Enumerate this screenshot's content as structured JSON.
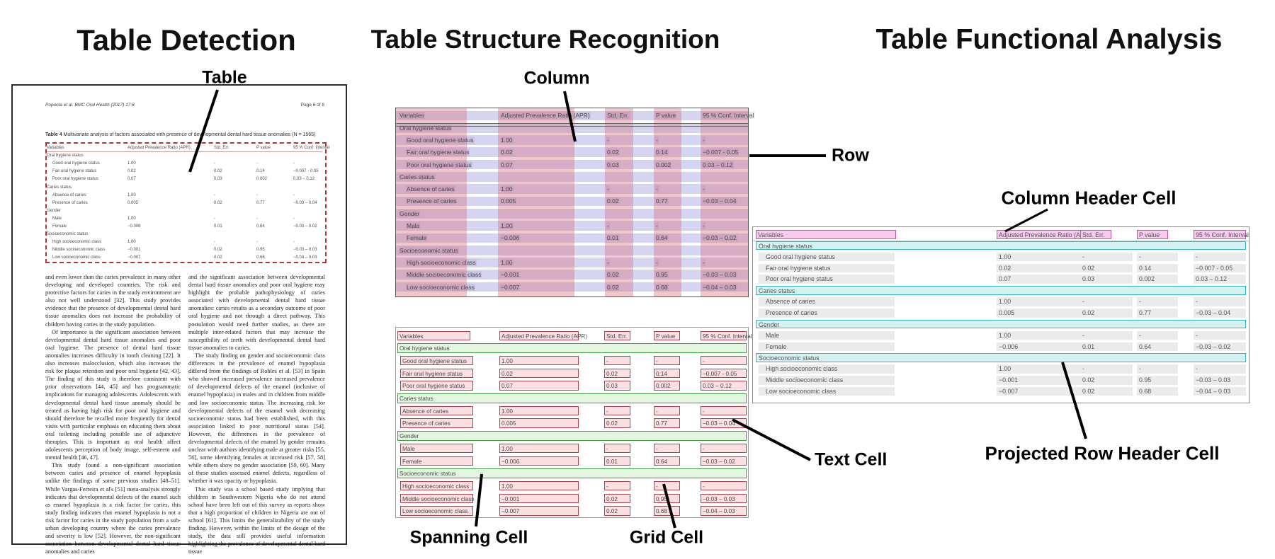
{
  "panels": {
    "detection": {
      "title": "Table Detection",
      "annotation_label": "Table"
    },
    "structure": {
      "title": "Table Structure Recognition",
      "labels": {
        "column": "Column",
        "row": "Row",
        "spanning_cell": "Spanning Cell",
        "grid_cell": "Grid Cell",
        "text_cell": "Text Cell"
      }
    },
    "functional": {
      "title": "Table Functional Analysis",
      "labels": {
        "column_header_cell": "Column Header Cell",
        "projected_row_header_cell": "Projected Row Header Cell"
      }
    }
  },
  "document": {
    "header_left": "Popoola et al. BMC Oral Health  (2017) 17:8",
    "header_right": "Page 6 of 8",
    "caption_bold": "Table 4",
    "caption_rest": " Multivariate analysis of factors associated with presence of developmental dental hard tissue anomalies (N = 1565)",
    "body_left": [
      "and even lower than the caries prevalence in many other developing and developed countries. The risk and protective factors for caries in the study environment are also not well understood [32]. This study provides evidence that the presence of developmental dental hard tissue anomalies does not increase the probability of children having caries in the study population.",
      "Of importance is the significant association between developmental dental hard tissue anomalies and poor oral hygiene. The presence of dental hard tissue anomalies increases difficulty in tooth cleaning [22]. It also increases malocclusion, which also increases the risk for plaque retention and poor oral hygiene [42, 43]. The finding of this study is therefore consistent with prior observations [44, 45] and has programmatic implications for managing adolescents. Adolescents with developmental dental hard tissue anomaly should be treated as having high risk for poor oral hygiene and should therefore be recalled more frequently for dental visits with particular emphasis on educating them about oral toileting including possible use of adjunctive therapies. This is important as oral health affect adolescents perception of body image, self-esteem and mental health [46, 47].",
      "This study found a non-significant association between caries and presence of enamel hypoplasia unlike the findings of some previous studies [48–51]. While Vargas-Ferreira et al's [51] meta-analysis strongly indicates that developmental defects of the enamel such as enamel hypoplasia is a risk factor for caries, this study finding indicates that enamel hypoplasia is not a risk factor for caries in the study population from a sub-urban developing country where the caries prevalence and severity is low [52]. However, the non-significant association between developmental dental hard tissue anomalies and caries"
    ],
    "body_right": [
      "and the significant association between developmental dental hard tissue anomalies and poor oral hygiene may highlight the probable pathophysiology of caries associated with developmental dental hard tissue anomalies: caries results as a secondary outcome of poor oral hygiene and not through a direct pathway. This postulation would need further studies, as there are multiple inter-related factors that may increase the susceptibility of teeth with developmental dental hard tissue anomalies to caries.",
      "The study finding on gender and socioeconomic class differences in the prevalence of enamel hypoplasia differed from the findings of Robles et al. [53] in Spain who showed increased prevalence increased prevalence of developmental defects of the enamel (inclusive of enamel hypoplasia) in males and in children from middle and low socioeconomic status. The increasing risk for developmental defects of the enamel with decreasing socioeconomic status had been established, with this association linked to poor nutritional status [54]. However, the differences in the prevalence of developmental defects of the enamel by gender remains unclear with authors identifying male at greater risks [55, 56], some identifying females at increased risk [57, 58] while others show no gender association [59, 60]. Many of these studies assessed enamel defects, regardless of whether it was opacity or hypoplasia.",
      "This study was a school based study implying that children in Southwestern Nigeria who do not attend school have been left out of this survey as reports show that a high proportion of children in Nigeria are out of school [61]. This limits the generalizability of the study finding. However, within the limits of the design of the study, the data still provides useful information highlighting the prevalence of developmental dental hard tissue"
    ]
  },
  "table": {
    "columns": [
      "Variables",
      "Adjusted Prevalence Ratio (APR)",
      "Std. Err.",
      "P value",
      "95 % Conf. Interval"
    ],
    "rows": [
      {
        "type": "section",
        "label": "Oral hygiene status"
      },
      {
        "type": "data",
        "cells": [
          "Good oral hygiene status",
          "1.00",
          "-",
          "-",
          "-"
        ]
      },
      {
        "type": "data",
        "cells": [
          "Fair oral hygiene status",
          "0.02",
          "0.02",
          "0.14",
          "−0.007 - 0.05"
        ]
      },
      {
        "type": "data",
        "cells": [
          "Poor oral hygiene status",
          "0.07",
          "0.03",
          "0.002",
          "0.03 – 0.12"
        ]
      },
      {
        "type": "section",
        "label": "Caries status"
      },
      {
        "type": "data",
        "cells": [
          "Absence of caries",
          "1.00",
          "-",
          "-",
          "-"
        ]
      },
      {
        "type": "data",
        "cells": [
          "Presence of caries",
          "0.005",
          "0.02",
          "0.77",
          "−0.03 – 0.04"
        ]
      },
      {
        "type": "section",
        "label": "Gender"
      },
      {
        "type": "data",
        "cells": [
          "Male",
          "1.00",
          "-",
          "-",
          "-"
        ]
      },
      {
        "type": "data",
        "cells": [
          "Female",
          "−0.006",
          "0.01",
          "0.64",
          "−0.03 – 0.02"
        ]
      },
      {
        "type": "section",
        "label": "Socioeconomic status"
      },
      {
        "type": "data",
        "cells": [
          "High socioeconomic class",
          "1.00",
          "-",
          "-",
          "-"
        ]
      },
      {
        "type": "data",
        "cells": [
          "Middle socioeconomic class",
          "−0.001",
          "0.02",
          "0.95",
          "−0.03 – 0.03"
        ]
      },
      {
        "type": "data",
        "cells": [
          "Low socioeconomic class",
          "−0.007",
          "0.02",
          "0.68",
          "−0.04 – 0.03"
        ]
      }
    ]
  },
  "colors": {
    "column_band": "rgba(219,118,136,0.42)",
    "row_band": "rgba(150,150,222,0.40)",
    "grid_cell_fill": "#fbdfe1",
    "grid_cell_border": "#b2434e",
    "spanning_fill": "#e4f6e0",
    "spanning_border": "#3f9e3f",
    "col_header_fill": "#f9c9ef",
    "col_header_border": "#cb4ebc",
    "projected_fill": "#d5f2f3",
    "projected_border": "#33b6c4",
    "detection_fill": "rgba(246,178,178,0.45)",
    "gray_cell_fill": "#ebebeb",
    "annotation_color": "#000000"
  }
}
